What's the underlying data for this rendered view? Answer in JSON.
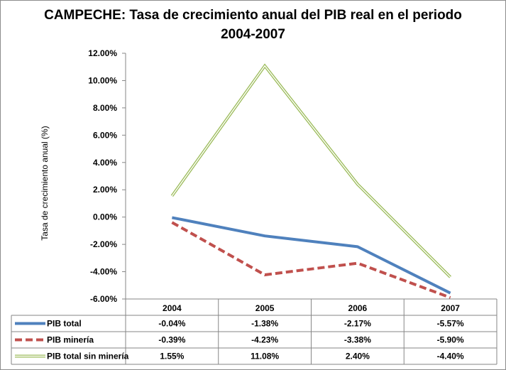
{
  "chart_data": {
    "type": "line",
    "title_line1": "CAMPECHE:  Tasa de crecimiento anual del PIB real en el periodo",
    "title_line2": "2004-2007",
    "ylabel": "Tasa de crecimiento anual (%)",
    "categories": [
      "2004",
      "2005",
      "2006",
      "2007"
    ],
    "ylim": [
      -6,
      12
    ],
    "yticks": [
      "12.00%",
      "10.00%",
      "8.00%",
      "6.00%",
      "4.00%",
      "2.00%",
      "0.00%",
      "-2.00%",
      "-4.00%",
      "-6.00%"
    ],
    "series": [
      {
        "name": "PIB total",
        "values": [
          -0.04,
          -1.38,
          -2.17,
          -5.57
        ],
        "labels": [
          "-0.04%",
          "-1.38%",
          "-2.17%",
          "-5.57%"
        ],
        "color": "#4f81bd",
        "style": "solid-thick"
      },
      {
        "name": "PIB minería",
        "values": [
          -0.39,
          -4.23,
          -3.38,
          -5.9
        ],
        "labels": [
          "-0.39%",
          "-4.23%",
          "-3.38%",
          "-5.90%"
        ],
        "color": "#c0504d",
        "style": "dashed"
      },
      {
        "name": "PIB total sin minería",
        "values": [
          1.55,
          11.08,
          2.4,
          -4.4
        ],
        "labels": [
          "1.55%",
          "11.08%",
          "2.40%",
          "-4.40%"
        ],
        "color": "#9bbb59",
        "style": "double"
      }
    ]
  }
}
